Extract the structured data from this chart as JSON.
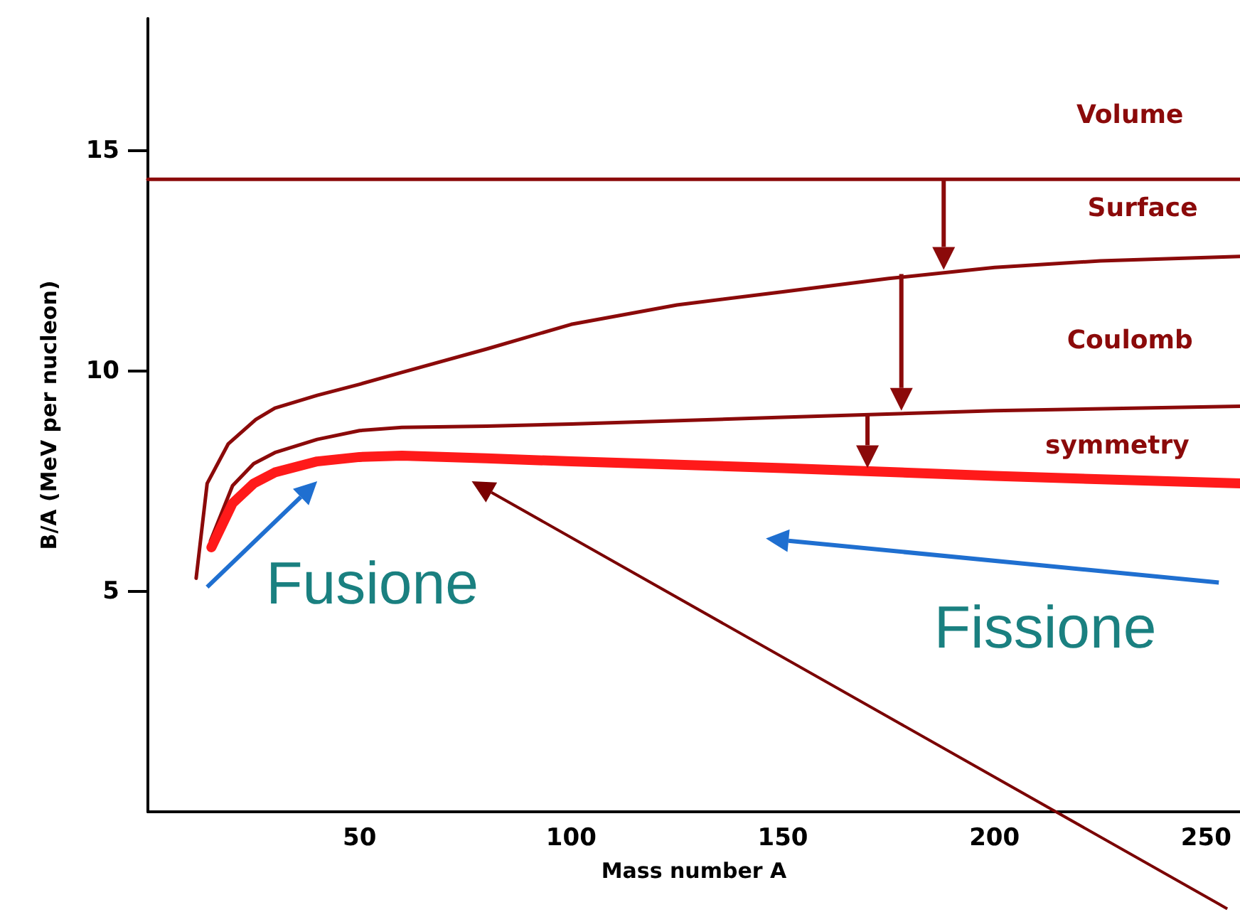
{
  "chart_data": {
    "type": "line",
    "xlabel": "Mass number A",
    "ylabel": "B/A (MeV per nucleon)",
    "xlim": [
      0,
      258
    ],
    "ylim": [
      0,
      18
    ],
    "xticks": [
      50,
      100,
      150,
      200,
      250
    ],
    "yticks": [
      5,
      10,
      15
    ],
    "grid": false,
    "marker": "none",
    "line_style": "solid",
    "series": [
      {
        "color": "#8b0a0a",
        "x": [
          0,
          258
        ],
        "values": [
          14.35,
          14.35
        ]
      },
      {
        "color": "#8b0a0a",
        "x": [
          11.4,
          14,
          19,
          25.5,
          30,
          40,
          50,
          60,
          80,
          100,
          125,
          150,
          175,
          200,
          225,
          258
        ],
        "values": [
          5.3,
          7.45,
          8.35,
          8.9,
          9.16,
          9.45,
          9.7,
          9.97,
          10.5,
          11.06,
          11.5,
          11.8,
          12.1,
          12.35,
          12.5,
          12.6
        ]
      },
      {
        "color": "#8b0a0a",
        "x": [
          14.8,
          20,
          25,
          30,
          40,
          50,
          60,
          80,
          100,
          150,
          200,
          258
        ],
        "values": [
          6.15,
          7.4,
          7.9,
          8.15,
          8.45,
          8.65,
          8.72,
          8.75,
          8.8,
          8.95,
          9.1,
          9.2
        ]
      },
      {
        "color": "#ff1a1a",
        "x": [
          15,
          20,
          25,
          30,
          40,
          50,
          60,
          80,
          100,
          150,
          200,
          258
        ],
        "values": [
          6.0,
          7.0,
          7.45,
          7.7,
          7.95,
          8.05,
          8.08,
          8.02,
          7.95,
          7.8,
          7.62,
          7.45
        ]
      }
    ],
    "annotations": [
      "Volume",
      "Surface",
      "Coulomb",
      "symmetry",
      "Fusione",
      "Fissione"
    ]
  }
}
